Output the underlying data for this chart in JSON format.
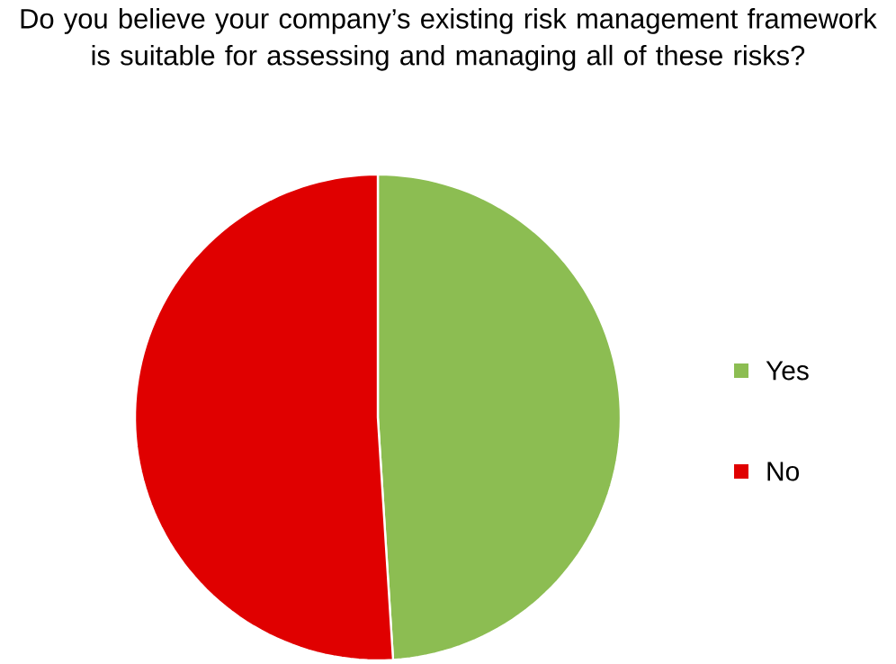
{
  "chart_data": {
    "type": "pie",
    "title": "Do you believe your company’s existing risk management framework is suitable for assessing and managing all of these risks?",
    "categories": [
      "Yes",
      "No"
    ],
    "values": [
      49,
      51
    ],
    "colors": [
      "#8cbd52",
      "#e00000"
    ],
    "legend": "right"
  }
}
